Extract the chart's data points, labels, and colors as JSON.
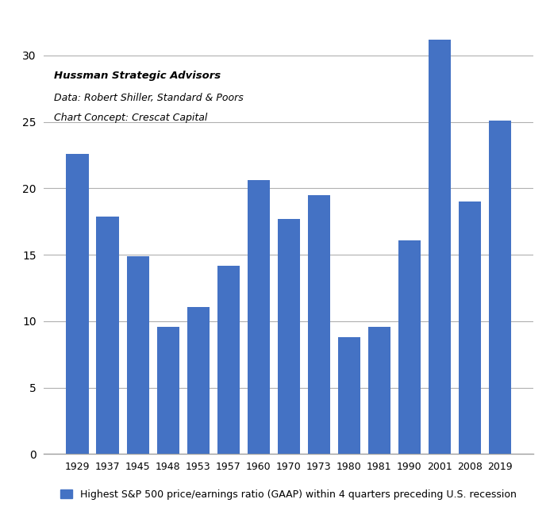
{
  "categories": [
    "1929",
    "1937",
    "1945",
    "1948",
    "1953",
    "1957",
    "1960",
    "1970",
    "1973",
    "1980",
    "1981",
    "1990",
    "2001",
    "2008",
    "2019"
  ],
  "values": [
    22.6,
    17.9,
    14.9,
    9.6,
    11.1,
    14.2,
    20.6,
    17.7,
    19.5,
    8.8,
    9.6,
    16.1,
    31.2,
    19.0,
    25.1
  ],
  "bar_color": "#4472C4",
  "legend_color": "#4472C4",
  "ylim": [
    0,
    33
  ],
  "yticks": [
    0,
    5,
    10,
    15,
    20,
    25,
    30
  ],
  "annotation_line1": "Hussman Strategic Advisors",
  "annotation_line2": "Data: Robert Shiller, Standard & Poors",
  "annotation_line3": "Chart Concept: Crescat Capital",
  "legend_label": "Highest S&P 500 price/earnings ratio (GAAP) within 4 quarters preceding U.S. recession",
  "background_color": "#ffffff",
  "grid_color": "#b0b0b0",
  "bar_width": 0.75
}
